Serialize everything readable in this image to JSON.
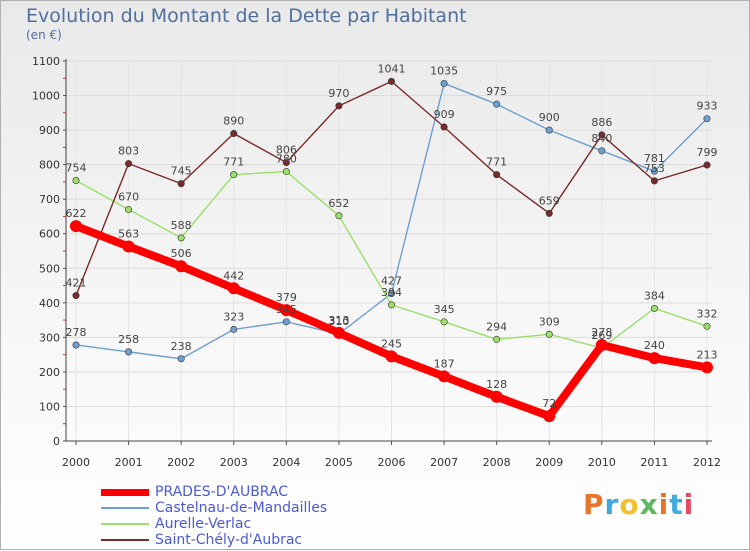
{
  "header": {
    "title": "Evolution du Montant de la Dette par Habitant",
    "subtitle": "(en €)"
  },
  "logo": {
    "text": "Proxiti",
    "colors": [
      "#e8742a",
      "#3fa9e0",
      "#f2c12e",
      "#5cb85c",
      "#e8742a",
      "#3fa9e0",
      "#e84a5f"
    ]
  },
  "chart_data": {
    "type": "line",
    "x": [
      "2000",
      "2001",
      "2002",
      "2003",
      "2004",
      "2005",
      "2006",
      "2007",
      "2008",
      "2009",
      "2010",
      "2011",
      "2012"
    ],
    "ylim": [
      0,
      1100
    ],
    "yticks": [
      0,
      100,
      200,
      300,
      400,
      500,
      600,
      700,
      800,
      900,
      1000,
      1100
    ],
    "grid": true,
    "legend_position": "bottom-left",
    "series": [
      {
        "name": "PRADES-D'AUBRAC",
        "color": "#ff0000",
        "values": [
          622,
          563,
          506,
          442,
          379,
          313,
          245,
          187,
          128,
          72,
          278,
          240,
          213
        ]
      },
      {
        "name": "Castelnau-de-Mandailles",
        "color": "#6d9fd0",
        "values": [
          278,
          258,
          238,
          323,
          345,
          310,
          427,
          1035,
          975,
          900,
          840,
          781,
          933
        ]
      },
      {
        "name": "Aurelle-Verlac",
        "color": "#9be06a",
        "values": [
          754,
          670,
          588,
          771,
          780,
          652,
          394,
          345,
          294,
          309,
          269,
          384,
          332
        ]
      },
      {
        "name": "Saint-Chély-d'Aubrac",
        "color": "#7a2a2a",
        "values": [
          421,
          803,
          745,
          890,
          806,
          970,
          1041,
          909,
          771,
          659,
          886,
          753,
          799
        ]
      }
    ]
  }
}
